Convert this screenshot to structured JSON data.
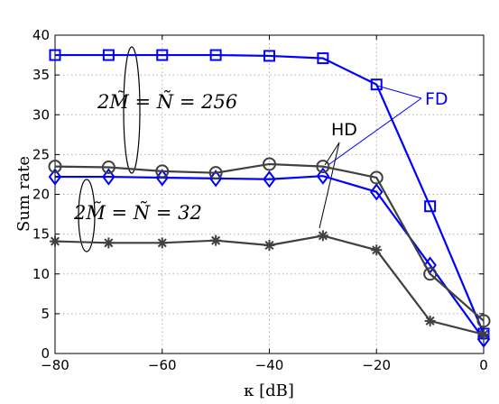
{
  "chart_data": {
    "type": "line",
    "xlabel": "κ [dB]",
    "ylabel": "Sum rate",
    "xlim": [
      -80,
      0
    ],
    "ylim": [
      0,
      40
    ],
    "xticks": [
      -80,
      -60,
      -40,
      -20,
      0
    ],
    "yticks": [
      0,
      5,
      10,
      15,
      20,
      25,
      30,
      35,
      40
    ],
    "grid": true,
    "x": [
      -80,
      -70,
      -60,
      -50,
      -40,
      -30,
      -20,
      -10,
      0
    ],
    "series": [
      {
        "group": "FD",
        "color": "#0000ff",
        "marker": "square",
        "values": [
          37.5,
          37.5,
          37.5,
          37.5,
          37.4,
          37.1,
          33.8,
          18.5,
          2.5
        ]
      },
      {
        "group": "FD",
        "color": "#0000ff",
        "marker": "diamond",
        "values": [
          22.2,
          22.2,
          22.1,
          22.0,
          21.9,
          22.3,
          20.3,
          11.1,
          1.8
        ]
      },
      {
        "group": "HD",
        "color": "#404040",
        "marker": "circle",
        "values": [
          23.5,
          23.4,
          22.9,
          22.7,
          23.8,
          23.5,
          22.1,
          10.0,
          4.1
        ]
      },
      {
        "group": "HD",
        "color": "#404040",
        "marker": "asterisk",
        "values": [
          14.1,
          13.9,
          13.9,
          14.2,
          13.6,
          14.8,
          13.0,
          4.1,
          2.4
        ]
      }
    ],
    "annotations": {
      "top_group": "2M̃ = Ñ = 256",
      "bottom_group": "2M̃ = Ñ = 32",
      "fd_label": "FD",
      "hd_label": "HD"
    }
  }
}
